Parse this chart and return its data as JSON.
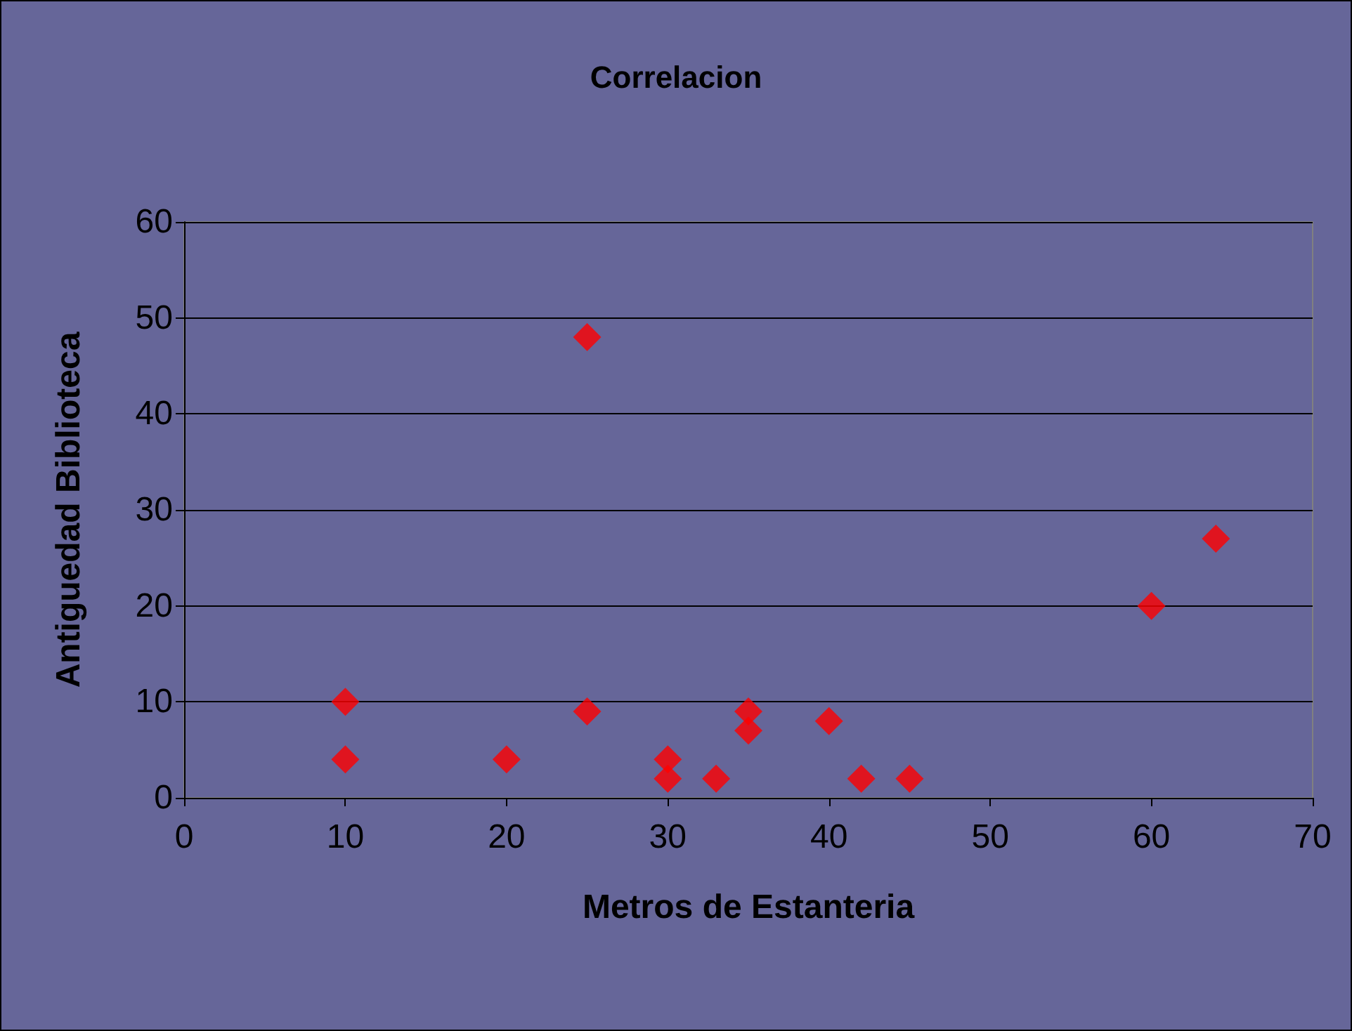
{
  "chart_data": {
    "type": "scatter",
    "title": "Correlacion",
    "xlabel": "Metros de Estanteria",
    "ylabel": "Antiguedad Biblioteca",
    "x": [
      10,
      10,
      20,
      25,
      25,
      30,
      30,
      33,
      35,
      35,
      40,
      42,
      45,
      60,
      64
    ],
    "values": [
      10,
      4,
      4,
      48,
      9,
      4,
      2,
      2,
      9,
      7,
      8,
      2,
      2,
      20,
      27
    ],
    "color": "#ff0000",
    "marker": "diamond",
    "xlim": [
      0,
      70
    ],
    "xticks": [
      0,
      10,
      20,
      30,
      40,
      50,
      60,
      70
    ],
    "ylim": [
      0,
      60
    ],
    "yticks": [
      0,
      10,
      20,
      30,
      40,
      50,
      60
    ],
    "grid": "y"
  }
}
